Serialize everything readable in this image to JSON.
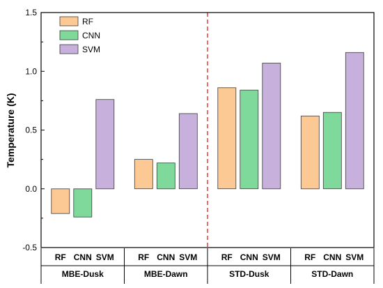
{
  "chart_data": {
    "type": "bar",
    "ylabel": "Temperature (K)",
    "xlabel": "",
    "ylim": [
      -0.5,
      1.5
    ],
    "yticks": [
      "-0.5",
      "0.0",
      "0.5",
      "1.0",
      "1.5"
    ],
    "groups": [
      "MBE-Dusk",
      "MBE-Dawn",
      "STD-Dusk",
      "STD-Dawn"
    ],
    "bar_labels": [
      "RF",
      "CNN",
      "SVM"
    ],
    "series": [
      {
        "name": "RF",
        "color": "#FCC994",
        "values": [
          -0.21,
          0.25,
          0.86,
          0.62
        ]
      },
      {
        "name": "CNN",
        "color": "#7FD99B",
        "values": [
          -0.24,
          0.22,
          0.84,
          0.65
        ]
      },
      {
        "name": "SVM",
        "color": "#C7B0DC",
        "values": [
          0.76,
          0.64,
          1.07,
          1.16
        ]
      }
    ],
    "divider": {
      "style": "red-dashed",
      "between_groups": [
        "MBE-Dawn",
        "STD-Dusk"
      ]
    },
    "legend_position": "top-left",
    "grid": false
  }
}
